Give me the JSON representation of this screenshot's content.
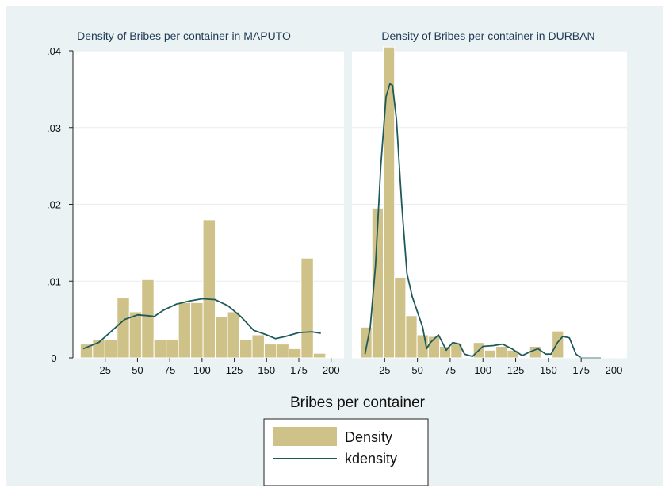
{
  "chart_data": {
    "type": "bar",
    "xlabel": "Bribes per container",
    "ylim": [
      0,
      0.04
    ],
    "y_ticks": [
      ".04",
      ".03",
      ".02",
      ".01",
      "0"
    ],
    "y_tick_values": [
      0.04,
      0.03,
      0.02,
      0.01,
      0
    ],
    "x_ticks": [
      "25",
      "50",
      "75",
      "100",
      "125",
      "150",
      "175",
      "200"
    ],
    "x_tick_values": [
      25,
      50,
      75,
      100,
      125,
      150,
      175,
      200
    ],
    "xlim": [
      0,
      210
    ],
    "grid": true,
    "legend_placement": "bottom-center",
    "legend": {
      "bar_label": "Density",
      "line_label": "kdensity"
    },
    "colors": {
      "bar": "#cfc289",
      "bar_edge": "#ffffff",
      "line": "#1f5a5a",
      "plot_bg": "#ffffff",
      "outer_bg": "#eaf2f3",
      "grid": "#e6eef0"
    },
    "panels": [
      {
        "title": "Density of Bribes per container in MAPUTO",
        "bin_width": 9.5,
        "bars": [
          {
            "x": 10.5,
            "height": 0.0018
          },
          {
            "x": 20,
            "height": 0.0024
          },
          {
            "x": 29.5,
            "height": 0.0024
          },
          {
            "x": 39,
            "height": 0.0078
          },
          {
            "x": 48.5,
            "height": 0.006
          },
          {
            "x": 58,
            "height": 0.0102
          },
          {
            "x": 67.5,
            "height": 0.0024
          },
          {
            "x": 77,
            "height": 0.0024
          },
          {
            "x": 86.5,
            "height": 0.0072
          },
          {
            "x": 96,
            "height": 0.0072
          },
          {
            "x": 105.5,
            "height": 0.018
          },
          {
            "x": 115,
            "height": 0.0054
          },
          {
            "x": 124.5,
            "height": 0.006
          },
          {
            "x": 134,
            "height": 0.0024
          },
          {
            "x": 143.5,
            "height": 0.003
          },
          {
            "x": 153,
            "height": 0.0018
          },
          {
            "x": 162.5,
            "height": 0.0018
          },
          {
            "x": 172,
            "height": 0.0012
          },
          {
            "x": 181.5,
            "height": 0.013
          },
          {
            "x": 191,
            "height": 0.0006
          }
        ],
        "kdensity": [
          [
            8,
            0.0012
          ],
          [
            20,
            0.002
          ],
          [
            30,
            0.0035
          ],
          [
            40,
            0.005
          ],
          [
            50,
            0.0056
          ],
          [
            58,
            0.0055
          ],
          [
            63,
            0.0054
          ],
          [
            70,
            0.0062
          ],
          [
            80,
            0.007
          ],
          [
            90,
            0.0074
          ],
          [
            100,
            0.0077
          ],
          [
            110,
            0.0076
          ],
          [
            120,
            0.0068
          ],
          [
            130,
            0.0054
          ],
          [
            140,
            0.0036
          ],
          [
            150,
            0.003
          ],
          [
            157,
            0.0025
          ],
          [
            165,
            0.0028
          ],
          [
            175,
            0.0033
          ],
          [
            185,
            0.0034
          ],
          [
            192,
            0.0032
          ]
        ]
      },
      {
        "title": "Density of Bribes per container in DURBAN",
        "bin_width": 8.6,
        "bars": [
          {
            "x": 11,
            "height": 0.004
          },
          {
            "x": 19.6,
            "height": 0.0195
          },
          {
            "x": 28.2,
            "height": 0.0405
          },
          {
            "x": 36.8,
            "height": 0.0105
          },
          {
            "x": 45.4,
            "height": 0.0055
          },
          {
            "x": 54,
            "height": 0.003
          },
          {
            "x": 62.6,
            "height": 0.0028
          },
          {
            "x": 71.2,
            "height": 0.0015
          },
          {
            "x": 79.8,
            "height": 0.0018
          },
          {
            "x": 88.4,
            "height": 0
          },
          {
            "x": 97,
            "height": 0.002
          },
          {
            "x": 105.6,
            "height": 0.001
          },
          {
            "x": 114.2,
            "height": 0.0015
          },
          {
            "x": 122.8,
            "height": 0.001
          },
          {
            "x": 131.4,
            "height": 0
          },
          {
            "x": 140,
            "height": 0.0015
          },
          {
            "x": 148.6,
            "height": 0
          },
          {
            "x": 157.2,
            "height": 0.0035
          }
        ],
        "kdensity": [
          [
            10,
            0.0005
          ],
          [
            14,
            0.004
          ],
          [
            18,
            0.012
          ],
          [
            22,
            0.025
          ],
          [
            26,
            0.034
          ],
          [
            29,
            0.0357
          ],
          [
            31,
            0.0355
          ],
          [
            34,
            0.031
          ],
          [
            38,
            0.02
          ],
          [
            42,
            0.011
          ],
          [
            46,
            0.008
          ],
          [
            50,
            0.006
          ],
          [
            54,
            0.004
          ],
          [
            57,
            0.0012
          ],
          [
            60,
            0.002
          ],
          [
            66,
            0.003
          ],
          [
            72,
            0.001
          ],
          [
            77,
            0.002
          ],
          [
            82,
            0.0018
          ],
          [
            86,
            0.0005
          ],
          [
            92,
            0.0002
          ],
          [
            100,
            0.0015
          ],
          [
            108,
            0.0016
          ],
          [
            115,
            0.0018
          ],
          [
            122,
            0.0012
          ],
          [
            130,
            0.0003
          ],
          [
            136,
            0.0008
          ],
          [
            142,
            0.0012
          ],
          [
            148,
            0.0005
          ],
          [
            152,
            0.0005
          ],
          [
            157,
            0.002
          ],
          [
            161,
            0.0028
          ],
          [
            166,
            0.0026
          ],
          [
            171,
            0.0005
          ],
          [
            175,
            0
          ],
          [
            185,
            0
          ],
          [
            190,
            0
          ]
        ]
      }
    ]
  }
}
